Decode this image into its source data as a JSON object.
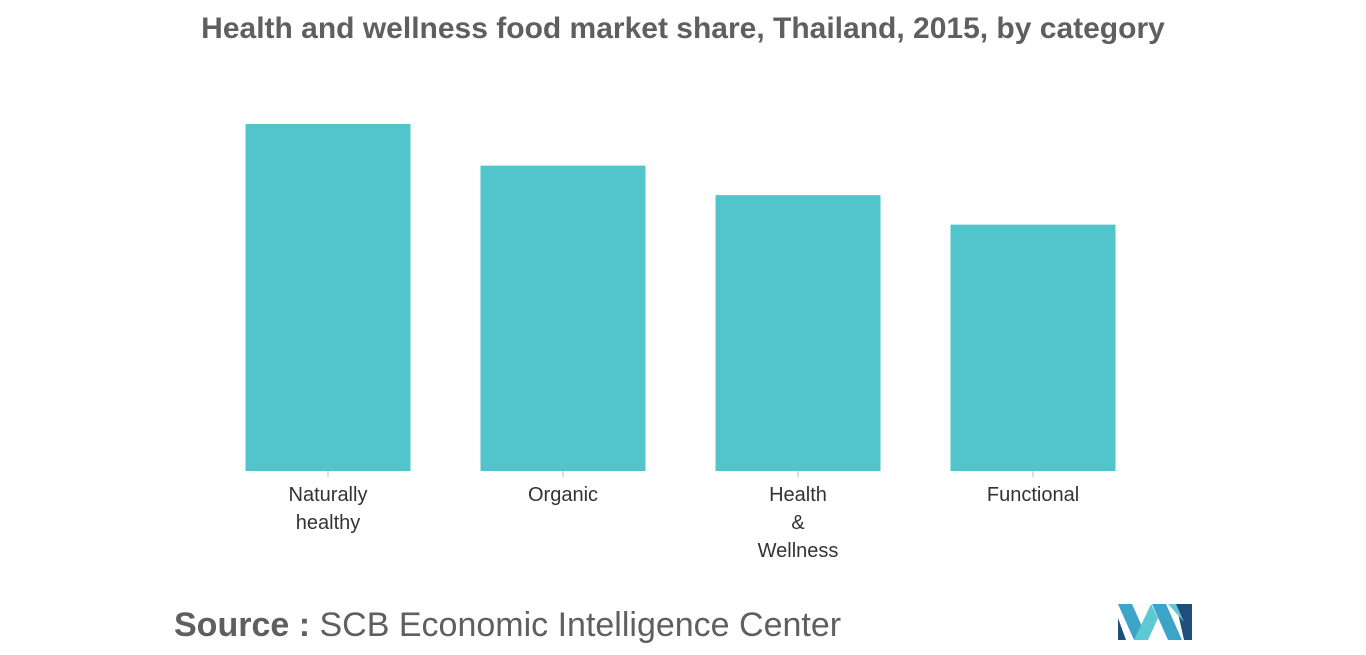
{
  "chart_data": {
    "type": "bar",
    "title": "Health and wellness food market share, Thailand, 2015, by category",
    "categories": [
      "Naturally healthy",
      "Organic",
      "Health & Wellness",
      "Functional"
    ],
    "category_lines": [
      [
        "Naturally",
        "healthy"
      ],
      [
        "Organic"
      ],
      [
        "Health",
        "&",
        "Wellness"
      ],
      [
        "Functional"
      ]
    ],
    "values": [
      100,
      88,
      79.5,
      71
    ],
    "ylim": [
      0,
      100
    ],
    "xlabel": "",
    "ylabel": "",
    "grid": false,
    "legend": "none",
    "bar_color": "#52c4cb"
  },
  "source": {
    "label": "Source :",
    "text": "SCB Economic Intelligence Center"
  },
  "logo": {
    "icon": "mordor-intelligence-logo-icon",
    "colors": [
      "#1f4e7a",
      "#3aa5c9",
      "#5cc9d3"
    ]
  }
}
